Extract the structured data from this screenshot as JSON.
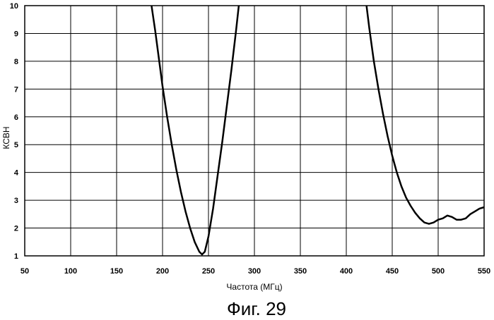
{
  "figure_caption": "Фиг. 29",
  "chart_data": {
    "type": "line",
    "title": "",
    "xlabel": "Частота (МГц)",
    "ylabel": "КСВН",
    "xlim": [
      50,
      550
    ],
    "ylim": [
      1,
      10
    ],
    "x_ticks": [
      "50",
      "100",
      "150",
      "200",
      "250",
      "300",
      "350",
      "400",
      "450",
      "500",
      "550"
    ],
    "y_ticks": [
      "1",
      "2",
      "3",
      "4",
      "5",
      "6",
      "7",
      "8",
      "9",
      "10"
    ],
    "grid": true,
    "legend": "none",
    "line_color": "#000000",
    "segments": [
      {
        "x": [
          188,
          192,
          196,
          200,
          205,
          210,
          215,
          220,
          225,
          230,
          235,
          240,
          243,
          246,
          250,
          255,
          260,
          265,
          270,
          275,
          280,
          283
        ],
        "y": [
          10.0,
          9.1,
          8.1,
          7.1,
          6.0,
          5.0,
          4.1,
          3.3,
          2.6,
          2.0,
          1.5,
          1.15,
          1.05,
          1.15,
          1.7,
          2.7,
          3.9,
          5.1,
          6.4,
          7.7,
          9.1,
          10.0
        ]
      },
      {
        "x": [
          422,
          425,
          430,
          435,
          440,
          445,
          450,
          455,
          460,
          465,
          470,
          475,
          480,
          485,
          490,
          495,
          500,
          505,
          510,
          515,
          520,
          525,
          530,
          535,
          540,
          545,
          550
        ],
        "y": [
          10.0,
          9.2,
          8.0,
          7.0,
          6.1,
          5.3,
          4.6,
          4.0,
          3.5,
          3.1,
          2.8,
          2.55,
          2.35,
          2.2,
          2.15,
          2.2,
          2.3,
          2.35,
          2.45,
          2.4,
          2.3,
          2.3,
          2.35,
          2.5,
          2.6,
          2.7,
          2.75
        ]
      }
    ]
  }
}
